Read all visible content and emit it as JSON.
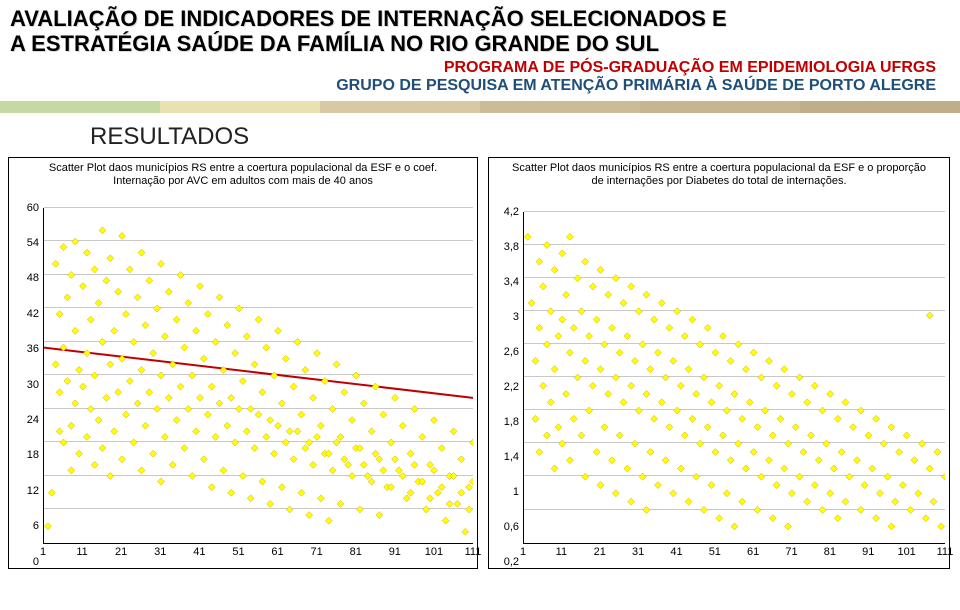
{
  "header": {
    "title_line1": "AVALIAÇÃO DE INDICADORES DE INTERNAÇÃO SELECIONADOS E",
    "title_line2": "A ESTRATÉGIA SAÚDE DA FAMÍLIA NO RIO GRANDE DO SUL",
    "subtitle_red": "PROGRAMA DE PÓS-GRADUAÇÃO EM EPIDEMIOLOGIA UFRGS",
    "subtitle_blue": "GRUPO DE PESQUISA EM ATENÇÃO PRIMÁRIA À SAÚDE DE PORTO ALEGRE",
    "section": "RESULTADOS"
  },
  "stripes": [
    "#c6d9a5",
    "#e8e1b0",
    "#d6c9a3",
    "#cbbc98",
    "#c6b590",
    "#c1ae88"
  ],
  "chart_left": {
    "type": "scatter",
    "title": "Scatter Plot daos municípios RS entre a coertura populacional da ESF e o coef. Internação por AVC em adultos com mais de 40 anos",
    "xlim": [
      1,
      111
    ],
    "ylim": [
      0,
      60
    ],
    "xticks": [
      1,
      11,
      21,
      31,
      41,
      51,
      61,
      71,
      81,
      91,
      101,
      111
    ],
    "yticks": [
      0,
      6,
      12,
      18,
      24,
      30,
      36,
      42,
      48,
      54,
      60
    ],
    "background": "#ffffff",
    "grid_color": "#c8c8c8",
    "marker": {
      "shape": "diamond",
      "fill": "#ffff00",
      "stroke": "#d4a800",
      "size": 7
    },
    "trend": {
      "stroke": "#c00000",
      "width": 2,
      "points": [
        [
          1,
          35
        ],
        [
          111,
          26
        ]
      ]
    },
    "data": [
      [
        2,
        3
      ],
      [
        3,
        9
      ],
      [
        4,
        50
      ],
      [
        4,
        32
      ],
      [
        5,
        41
      ],
      [
        5,
        27
      ],
      [
        5,
        20
      ],
      [
        6,
        53
      ],
      [
        6,
        35
      ],
      [
        6,
        18
      ],
      [
        7,
        44
      ],
      [
        7,
        29
      ],
      [
        8,
        48
      ],
      [
        8,
        21
      ],
      [
        8,
        13
      ],
      [
        9,
        54
      ],
      [
        9,
        38
      ],
      [
        9,
        25
      ],
      [
        10,
        31
      ],
      [
        10,
        16
      ],
      [
        11,
        46
      ],
      [
        11,
        28
      ],
      [
        12,
        52
      ],
      [
        12,
        34
      ],
      [
        12,
        19
      ],
      [
        13,
        40
      ],
      [
        13,
        24
      ],
      [
        14,
        49
      ],
      [
        14,
        30
      ],
      [
        14,
        14
      ],
      [
        15,
        43
      ],
      [
        15,
        22
      ],
      [
        16,
        56
      ],
      [
        16,
        36
      ],
      [
        16,
        17
      ],
      [
        17,
        47
      ],
      [
        17,
        26
      ],
      [
        18,
        51
      ],
      [
        18,
        32
      ],
      [
        18,
        12
      ],
      [
        19,
        38
      ],
      [
        19,
        20
      ],
      [
        20,
        45
      ],
      [
        20,
        27
      ],
      [
        21,
        55
      ],
      [
        21,
        33
      ],
      [
        21,
        15
      ],
      [
        22,
        41
      ],
      [
        22,
        23
      ],
      [
        23,
        49
      ],
      [
        23,
        29
      ],
      [
        24,
        36
      ],
      [
        24,
        18
      ],
      [
        25,
        44
      ],
      [
        25,
        25
      ],
      [
        26,
        52
      ],
      [
        26,
        31
      ],
      [
        26,
        13
      ],
      [
        27,
        39
      ],
      [
        27,
        21
      ],
      [
        28,
        47
      ],
      [
        28,
        27
      ],
      [
        29,
        34
      ],
      [
        29,
        16
      ],
      [
        30,
        42
      ],
      [
        30,
        24
      ],
      [
        31,
        50
      ],
      [
        31,
        30
      ],
      [
        31,
        11
      ],
      [
        32,
        37
      ],
      [
        32,
        19
      ],
      [
        33,
        45
      ],
      [
        33,
        26
      ],
      [
        34,
        32
      ],
      [
        34,
        14
      ],
      [
        35,
        40
      ],
      [
        35,
        22
      ],
      [
        36,
        48
      ],
      [
        36,
        28
      ],
      [
        37,
        35
      ],
      [
        37,
        17
      ],
      [
        38,
        43
      ],
      [
        38,
        24
      ],
      [
        39,
        30
      ],
      [
        39,
        12
      ],
      [
        40,
        38
      ],
      [
        40,
        20
      ],
      [
        41,
        46
      ],
      [
        41,
        26
      ],
      [
        42,
        33
      ],
      [
        42,
        15
      ],
      [
        43,
        41
      ],
      [
        43,
        23
      ],
      [
        44,
        28
      ],
      [
        44,
        10
      ],
      [
        45,
        36
      ],
      [
        45,
        19
      ],
      [
        46,
        44
      ],
      [
        46,
        25
      ],
      [
        47,
        31
      ],
      [
        47,
        13
      ],
      [
        48,
        39
      ],
      [
        48,
        21
      ],
      [
        49,
        26
      ],
      [
        49,
        9
      ],
      [
        50,
        34
      ],
      [
        50,
        18
      ],
      [
        51,
        42
      ],
      [
        51,
        24
      ],
      [
        52,
        29
      ],
      [
        52,
        12
      ],
      [
        53,
        37
      ],
      [
        53,
        20
      ],
      [
        54,
        24
      ],
      [
        54,
        8
      ],
      [
        55,
        32
      ],
      [
        55,
        17
      ],
      [
        56,
        40
      ],
      [
        56,
        23
      ],
      [
        57,
        27
      ],
      [
        57,
        11
      ],
      [
        58,
        35
      ],
      [
        58,
        19
      ],
      [
        59,
        22
      ],
      [
        59,
        7
      ],
      [
        60,
        30
      ],
      [
        60,
        16
      ],
      [
        61,
        38
      ],
      [
        61,
        21
      ],
      [
        62,
        25
      ],
      [
        62,
        10
      ],
      [
        63,
        33
      ],
      [
        63,
        18
      ],
      [
        64,
        20
      ],
      [
        64,
        6
      ],
      [
        65,
        28
      ],
      [
        65,
        15
      ],
      [
        66,
        36
      ],
      [
        66,
        20
      ],
      [
        67,
        23
      ],
      [
        67,
        9
      ],
      [
        68,
        31
      ],
      [
        68,
        17
      ],
      [
        69,
        18
      ],
      [
        69,
        5
      ],
      [
        70,
        26
      ],
      [
        70,
        14
      ],
      [
        71,
        34
      ],
      [
        71,
        19
      ],
      [
        72,
        21
      ],
      [
        72,
        8
      ],
      [
        73,
        29
      ],
      [
        73,
        16
      ],
      [
        74,
        16
      ],
      [
        74,
        4
      ],
      [
        75,
        24
      ],
      [
        75,
        13
      ],
      [
        76,
        32
      ],
      [
        76,
        18
      ],
      [
        77,
        19
      ],
      [
        77,
        7
      ],
      [
        78,
        27
      ],
      [
        78,
        15
      ],
      [
        79,
        14
      ],
      [
        80,
        22
      ],
      [
        80,
        12
      ],
      [
        81,
        30
      ],
      [
        81,
        17
      ],
      [
        82,
        17
      ],
      [
        82,
        6
      ],
      [
        83,
        25
      ],
      [
        83,
        14
      ],
      [
        84,
        12
      ],
      [
        85,
        20
      ],
      [
        85,
        11
      ],
      [
        86,
        28
      ],
      [
        86,
        16
      ],
      [
        87,
        15
      ],
      [
        87,
        5
      ],
      [
        88,
        23
      ],
      [
        88,
        13
      ],
      [
        89,
        10
      ],
      [
        90,
        18
      ],
      [
        90,
        10
      ],
      [
        91,
        26
      ],
      [
        91,
        15
      ],
      [
        92,
        13
      ],
      [
        93,
        21
      ],
      [
        93,
        12
      ],
      [
        94,
        8
      ],
      [
        95,
        16
      ],
      [
        95,
        9
      ],
      [
        96,
        24
      ],
      [
        96,
        14
      ],
      [
        97,
        11
      ],
      [
        98,
        19
      ],
      [
        98,
        11
      ],
      [
        99,
        6
      ],
      [
        100,
        14
      ],
      [
        100,
        8
      ],
      [
        101,
        22
      ],
      [
        101,
        13
      ],
      [
        102,
        9
      ],
      [
        103,
        17
      ],
      [
        103,
        10
      ],
      [
        104,
        4
      ],
      [
        105,
        12
      ],
      [
        105,
        7
      ],
      [
        106,
        20
      ],
      [
        106,
        12
      ],
      [
        107,
        7
      ],
      [
        108,
        15
      ],
      [
        108,
        9
      ],
      [
        109,
        2
      ],
      [
        110,
        10
      ],
      [
        110,
        6
      ],
      [
        111,
        18
      ],
      [
        111,
        11
      ]
    ]
  },
  "chart_right": {
    "type": "scatter",
    "title": "Scatter Plot daos municípios RS entre a coertura populacional da ESF e o proporção de internações por Diabetes do total de internações.",
    "xlim": [
      1,
      111
    ],
    "ylim": [
      0.2,
      4.2
    ],
    "xticks": [
      1,
      11,
      21,
      31,
      41,
      51,
      61,
      71,
      81,
      91,
      101,
      111
    ],
    "yticks": [
      0.2,
      0.6,
      1.0,
      1.4,
      1.8,
      2.2,
      2.6,
      3.0,
      3.4,
      3.8,
      4.2
    ],
    "ytick_labels": [
      "0,2",
      "0,6",
      "1",
      "1,4",
      "1,8",
      "2,2",
      "2,6",
      "3",
      "3,4",
      "3,8",
      "4,2"
    ],
    "background": "#ffffff",
    "grid_color": "#c8c8c8",
    "marker": {
      "shape": "diamond",
      "fill": "#ffff00",
      "stroke": "#d4a800",
      "size": 7
    },
    "data": [
      [
        2,
        3.9
      ],
      [
        3,
        3.1
      ],
      [
        4,
        2.4
      ],
      [
        4,
        1.7
      ],
      [
        5,
        3.6
      ],
      [
        5,
        2.8
      ],
      [
        5,
        1.3
      ],
      [
        6,
        3.3
      ],
      [
        6,
        2.1
      ],
      [
        7,
        3.8
      ],
      [
        7,
        2.6
      ],
      [
        7,
        1.5
      ],
      [
        8,
        3.0
      ],
      [
        8,
        1.9
      ],
      [
        9,
        3.5
      ],
      [
        9,
        2.3
      ],
      [
        9,
        1.1
      ],
      [
        10,
        2.7
      ],
      [
        10,
        1.6
      ],
      [
        11,
        3.7
      ],
      [
        11,
        2.9
      ],
      [
        11,
        1.4
      ],
      [
        12,
        3.2
      ],
      [
        12,
        2.0
      ],
      [
        13,
        3.9
      ],
      [
        13,
        2.5
      ],
      [
        13,
        1.2
      ],
      [
        14,
        2.8
      ],
      [
        14,
        1.7
      ],
      [
        15,
        3.4
      ],
      [
        15,
        2.2
      ],
      [
        16,
        3.0
      ],
      [
        16,
        1.5
      ],
      [
        17,
        3.6
      ],
      [
        17,
        2.4
      ],
      [
        17,
        1.0
      ],
      [
        18,
        2.7
      ],
      [
        18,
        1.8
      ],
      [
        19,
        3.3
      ],
      [
        19,
        2.1
      ],
      [
        20,
        2.9
      ],
      [
        20,
        1.3
      ],
      [
        21,
        3.5
      ],
      [
        21,
        2.3
      ],
      [
        21,
        0.9
      ],
      [
        22,
        2.6
      ],
      [
        22,
        1.6
      ],
      [
        23,
        3.2
      ],
      [
        23,
        2.0
      ],
      [
        24,
        2.8
      ],
      [
        24,
        1.2
      ],
      [
        25,
        3.4
      ],
      [
        25,
        2.2
      ],
      [
        25,
        0.8
      ],
      [
        26,
        2.5
      ],
      [
        26,
        1.5
      ],
      [
        27,
        3.1
      ],
      [
        27,
        1.9
      ],
      [
        28,
        2.7
      ],
      [
        28,
        1.1
      ],
      [
        29,
        3.3
      ],
      [
        29,
        2.1
      ],
      [
        29,
        0.7
      ],
      [
        30,
        2.4
      ],
      [
        30,
        1.4
      ],
      [
        31,
        3.0
      ],
      [
        31,
        1.8
      ],
      [
        32,
        2.6
      ],
      [
        32,
        1.0
      ],
      [
        33,
        3.2
      ],
      [
        33,
        2.0
      ],
      [
        33,
        0.6
      ],
      [
        34,
        2.3
      ],
      [
        34,
        1.3
      ],
      [
        35,
        2.9
      ],
      [
        35,
        1.7
      ],
      [
        36,
        2.5
      ],
      [
        36,
        0.9
      ],
      [
        37,
        3.1
      ],
      [
        37,
        1.9
      ],
      [
        38,
        2.2
      ],
      [
        38,
        1.2
      ],
      [
        39,
        2.8
      ],
      [
        39,
        1.6
      ],
      [
        40,
        2.4
      ],
      [
        40,
        0.8
      ],
      [
        41,
        3.0
      ],
      [
        41,
        1.8
      ],
      [
        42,
        2.1
      ],
      [
        42,
        1.1
      ],
      [
        43,
        2.7
      ],
      [
        43,
        1.5
      ],
      [
        44,
        2.3
      ],
      [
        44,
        0.7
      ],
      [
        45,
        2.9
      ],
      [
        45,
        1.7
      ],
      [
        46,
        2.0
      ],
      [
        46,
        1.0
      ],
      [
        47,
        2.6
      ],
      [
        47,
        1.4
      ],
      [
        48,
        2.2
      ],
      [
        48,
        0.6
      ],
      [
        49,
        2.8
      ],
      [
        49,
        1.6
      ],
      [
        50,
        1.9
      ],
      [
        50,
        0.9
      ],
      [
        51,
        2.5
      ],
      [
        51,
        1.3
      ],
      [
        52,
        2.1
      ],
      [
        52,
        0.5
      ],
      [
        53,
        2.7
      ],
      [
        53,
        1.5
      ],
      [
        54,
        1.8
      ],
      [
        54,
        0.8
      ],
      [
        55,
        2.4
      ],
      [
        55,
        1.2
      ],
      [
        56,
        2.0
      ],
      [
        56,
        0.4
      ],
      [
        57,
        2.6
      ],
      [
        57,
        1.4
      ],
      [
        58,
        1.7
      ],
      [
        58,
        0.7
      ],
      [
        59,
        2.3
      ],
      [
        59,
        1.1
      ],
      [
        60,
        1.9
      ],
      [
        61,
        2.5
      ],
      [
        61,
        1.3
      ],
      [
        62,
        1.6
      ],
      [
        62,
        0.6
      ],
      [
        63,
        2.2
      ],
      [
        63,
        1.0
      ],
      [
        64,
        1.8
      ],
      [
        65,
        2.4
      ],
      [
        65,
        1.2
      ],
      [
        66,
        1.5
      ],
      [
        66,
        0.5
      ],
      [
        67,
        2.1
      ],
      [
        67,
        0.9
      ],
      [
        68,
        1.7
      ],
      [
        69,
        2.3
      ],
      [
        69,
        1.1
      ],
      [
        70,
        1.4
      ],
      [
        70,
        0.4
      ],
      [
        71,
        2.0
      ],
      [
        71,
        0.8
      ],
      [
        72,
        1.6
      ],
      [
        73,
        2.2
      ],
      [
        73,
        1.0
      ],
      [
        74,
        1.3
      ],
      [
        75,
        1.9
      ],
      [
        75,
        0.7
      ],
      [
        76,
        1.5
      ],
      [
        77,
        2.1
      ],
      [
        77,
        0.9
      ],
      [
        78,
        1.2
      ],
      [
        79,
        1.8
      ],
      [
        79,
        0.6
      ],
      [
        80,
        1.4
      ],
      [
        81,
        2.0
      ],
      [
        81,
        0.8
      ],
      [
        82,
        1.1
      ],
      [
        83,
        1.7
      ],
      [
        83,
        0.5
      ],
      [
        84,
        1.3
      ],
      [
        85,
        1.9
      ],
      [
        85,
        0.7
      ],
      [
        86,
        1.0
      ],
      [
        87,
        1.6
      ],
      [
        88,
        1.2
      ],
      [
        89,
        1.8
      ],
      [
        89,
        0.6
      ],
      [
        90,
        0.9
      ],
      [
        91,
        1.5
      ],
      [
        92,
        1.1
      ],
      [
        93,
        1.7
      ],
      [
        93,
        0.5
      ],
      [
        94,
        0.8
      ],
      [
        95,
        1.4
      ],
      [
        96,
        1.0
      ],
      [
        97,
        1.6
      ],
      [
        97,
        0.4
      ],
      [
        98,
        0.7
      ],
      [
        99,
        1.3
      ],
      [
        100,
        0.9
      ],
      [
        101,
        1.5
      ],
      [
        102,
        0.6
      ],
      [
        103,
        1.2
      ],
      [
        104,
        0.8
      ],
      [
        105,
        1.4
      ],
      [
        106,
        0.5
      ],
      [
        107,
        1.1
      ],
      [
        107,
        2.95
      ],
      [
        108,
        0.7
      ],
      [
        109,
        1.3
      ],
      [
        110,
        0.4
      ],
      [
        111,
        1.0
      ]
    ]
  }
}
